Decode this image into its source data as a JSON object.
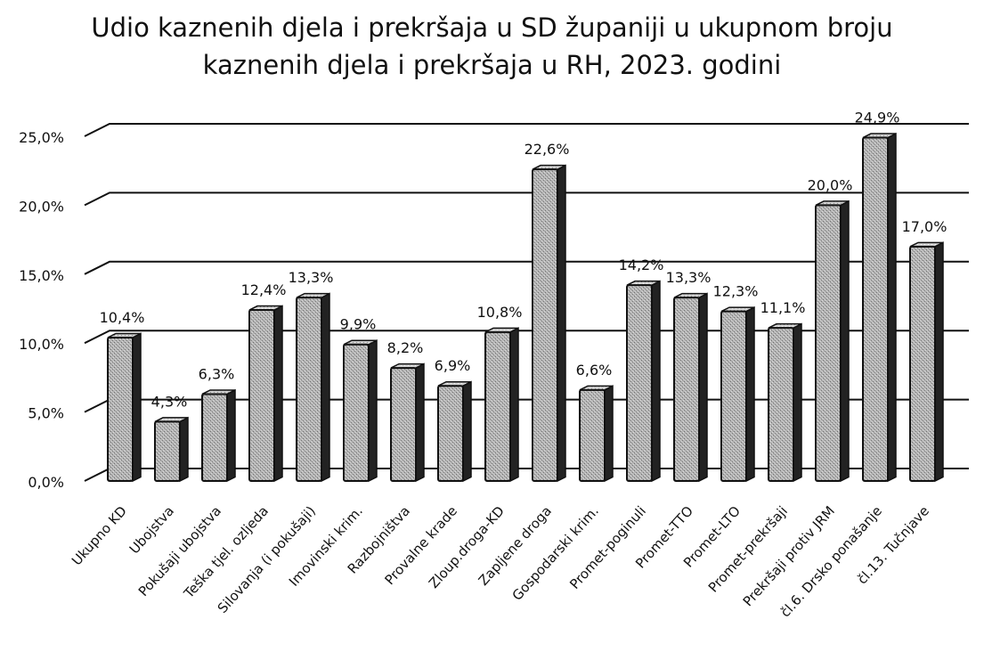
{
  "chart_data": {
    "type": "bar",
    "title_line1": "Udio kaznenih djela i prekršaja u SD županiji u ukupnom broju",
    "title_line2": "kaznenih djela i prekršaja u RH, 2023. godini",
    "categories": [
      "Ukupno KD",
      "Ubojstva",
      "Pokušaji ubojstva",
      "Teška tjel. ozljeda",
      "Silovanja (i pokušaji)",
      "Imovinski krim.",
      "Razbojništva",
      "Provalne krade",
      "Zloup.droga-KD",
      "Zapljene droga",
      "Gospodarski krim.",
      "Promet-poginuli",
      "Promet-TTO",
      "Promet-LTO",
      "Promet-prekršaji",
      "Prekršaji protiv JRM",
      "čl.6. Drsko ponašanje",
      "čl.13. Tučnjave"
    ],
    "values": [
      10.4,
      4.3,
      6.3,
      12.4,
      13.3,
      9.9,
      8.2,
      6.9,
      10.8,
      22.6,
      6.6,
      14.2,
      13.3,
      12.3,
      11.1,
      20.0,
      24.9,
      17.0
    ],
    "value_labels": [
      "10,4%",
      "4,3%",
      "6,3%",
      "12,4%",
      "13,3%",
      "9,9%",
      "8,2%",
      "6,9%",
      "10,8%",
      "22,6%",
      "6,6%",
      "14,2%",
      "13,3%",
      "12,3%",
      "11,1%",
      "20,0%",
      "24,9%",
      "17,0%"
    ],
    "y_ticks": [
      "0,0%",
      "5,0%",
      "10,0%",
      "15,0%",
      "20,0%",
      "25,0%"
    ],
    "ylim": [
      0,
      25
    ],
    "grid": true,
    "legend": "none",
    "bar_fill": "#a9a9a9",
    "bar_edge": "#111111"
  }
}
